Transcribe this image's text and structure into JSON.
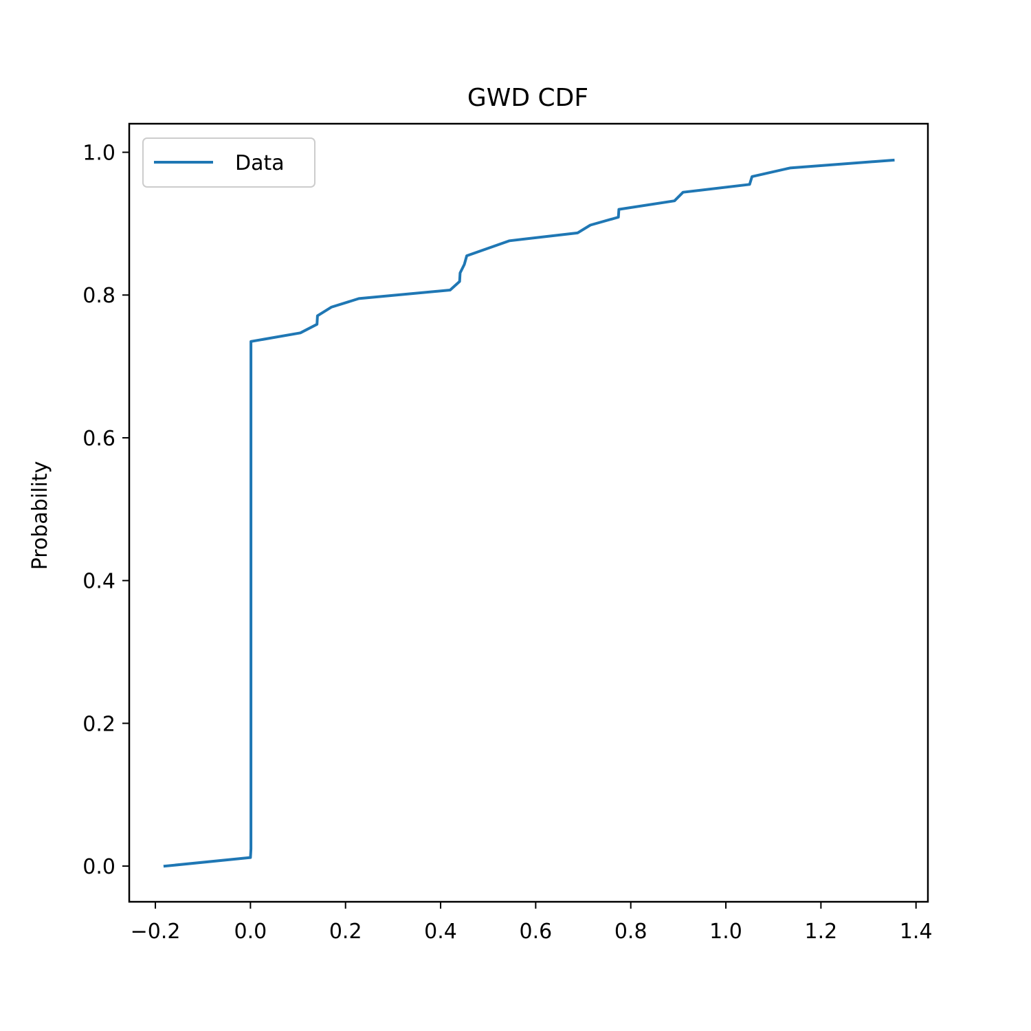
{
  "chart_data": {
    "type": "line",
    "title": "GWD CDF",
    "xlabel": "",
    "ylabel": "Probability",
    "xlim": [
      -0.255,
      1.425
    ],
    "ylim": [
      -0.05,
      1.04
    ],
    "xticks": [
      -0.2,
      0.0,
      0.2,
      0.4,
      0.6,
      0.8,
      1.0,
      1.2,
      1.4
    ],
    "xtick_labels": [
      "−0.2",
      "0.0",
      "0.2",
      "0.4",
      "0.6",
      "0.8",
      "1.0",
      "1.2",
      "1.4"
    ],
    "yticks": [
      0.0,
      0.2,
      0.4,
      0.6,
      0.8,
      1.0
    ],
    "ytick_labels": [
      "0.0",
      "0.2",
      "0.4",
      "0.6",
      "0.8",
      "1.0"
    ],
    "grid": false,
    "legend": {
      "position": "upper-left",
      "entries": [
        "Data"
      ]
    },
    "series": [
      {
        "name": "Data",
        "color": "#1f77b4",
        "points": [
          [
            -0.18,
            0.0
          ],
          [
            0.0,
            0.012
          ],
          [
            0.001,
            0.024
          ],
          [
            0.001,
            0.735
          ],
          [
            0.105,
            0.747
          ],
          [
            0.14,
            0.759
          ],
          [
            0.141,
            0.771
          ],
          [
            0.17,
            0.783
          ],
          [
            0.228,
            0.795
          ],
          [
            0.42,
            0.807
          ],
          [
            0.44,
            0.819
          ],
          [
            0.441,
            0.831
          ],
          [
            0.45,
            0.843
          ],
          [
            0.455,
            0.855
          ],
          [
            0.545,
            0.876
          ],
          [
            0.688,
            0.887
          ],
          [
            0.715,
            0.898
          ],
          [
            0.774,
            0.909
          ],
          [
            0.775,
            0.92
          ],
          [
            0.892,
            0.932
          ],
          [
            0.91,
            0.944
          ],
          [
            1.05,
            0.955
          ],
          [
            1.055,
            0.966
          ],
          [
            1.135,
            0.978
          ],
          [
            1.352,
            0.989
          ]
        ]
      }
    ]
  }
}
